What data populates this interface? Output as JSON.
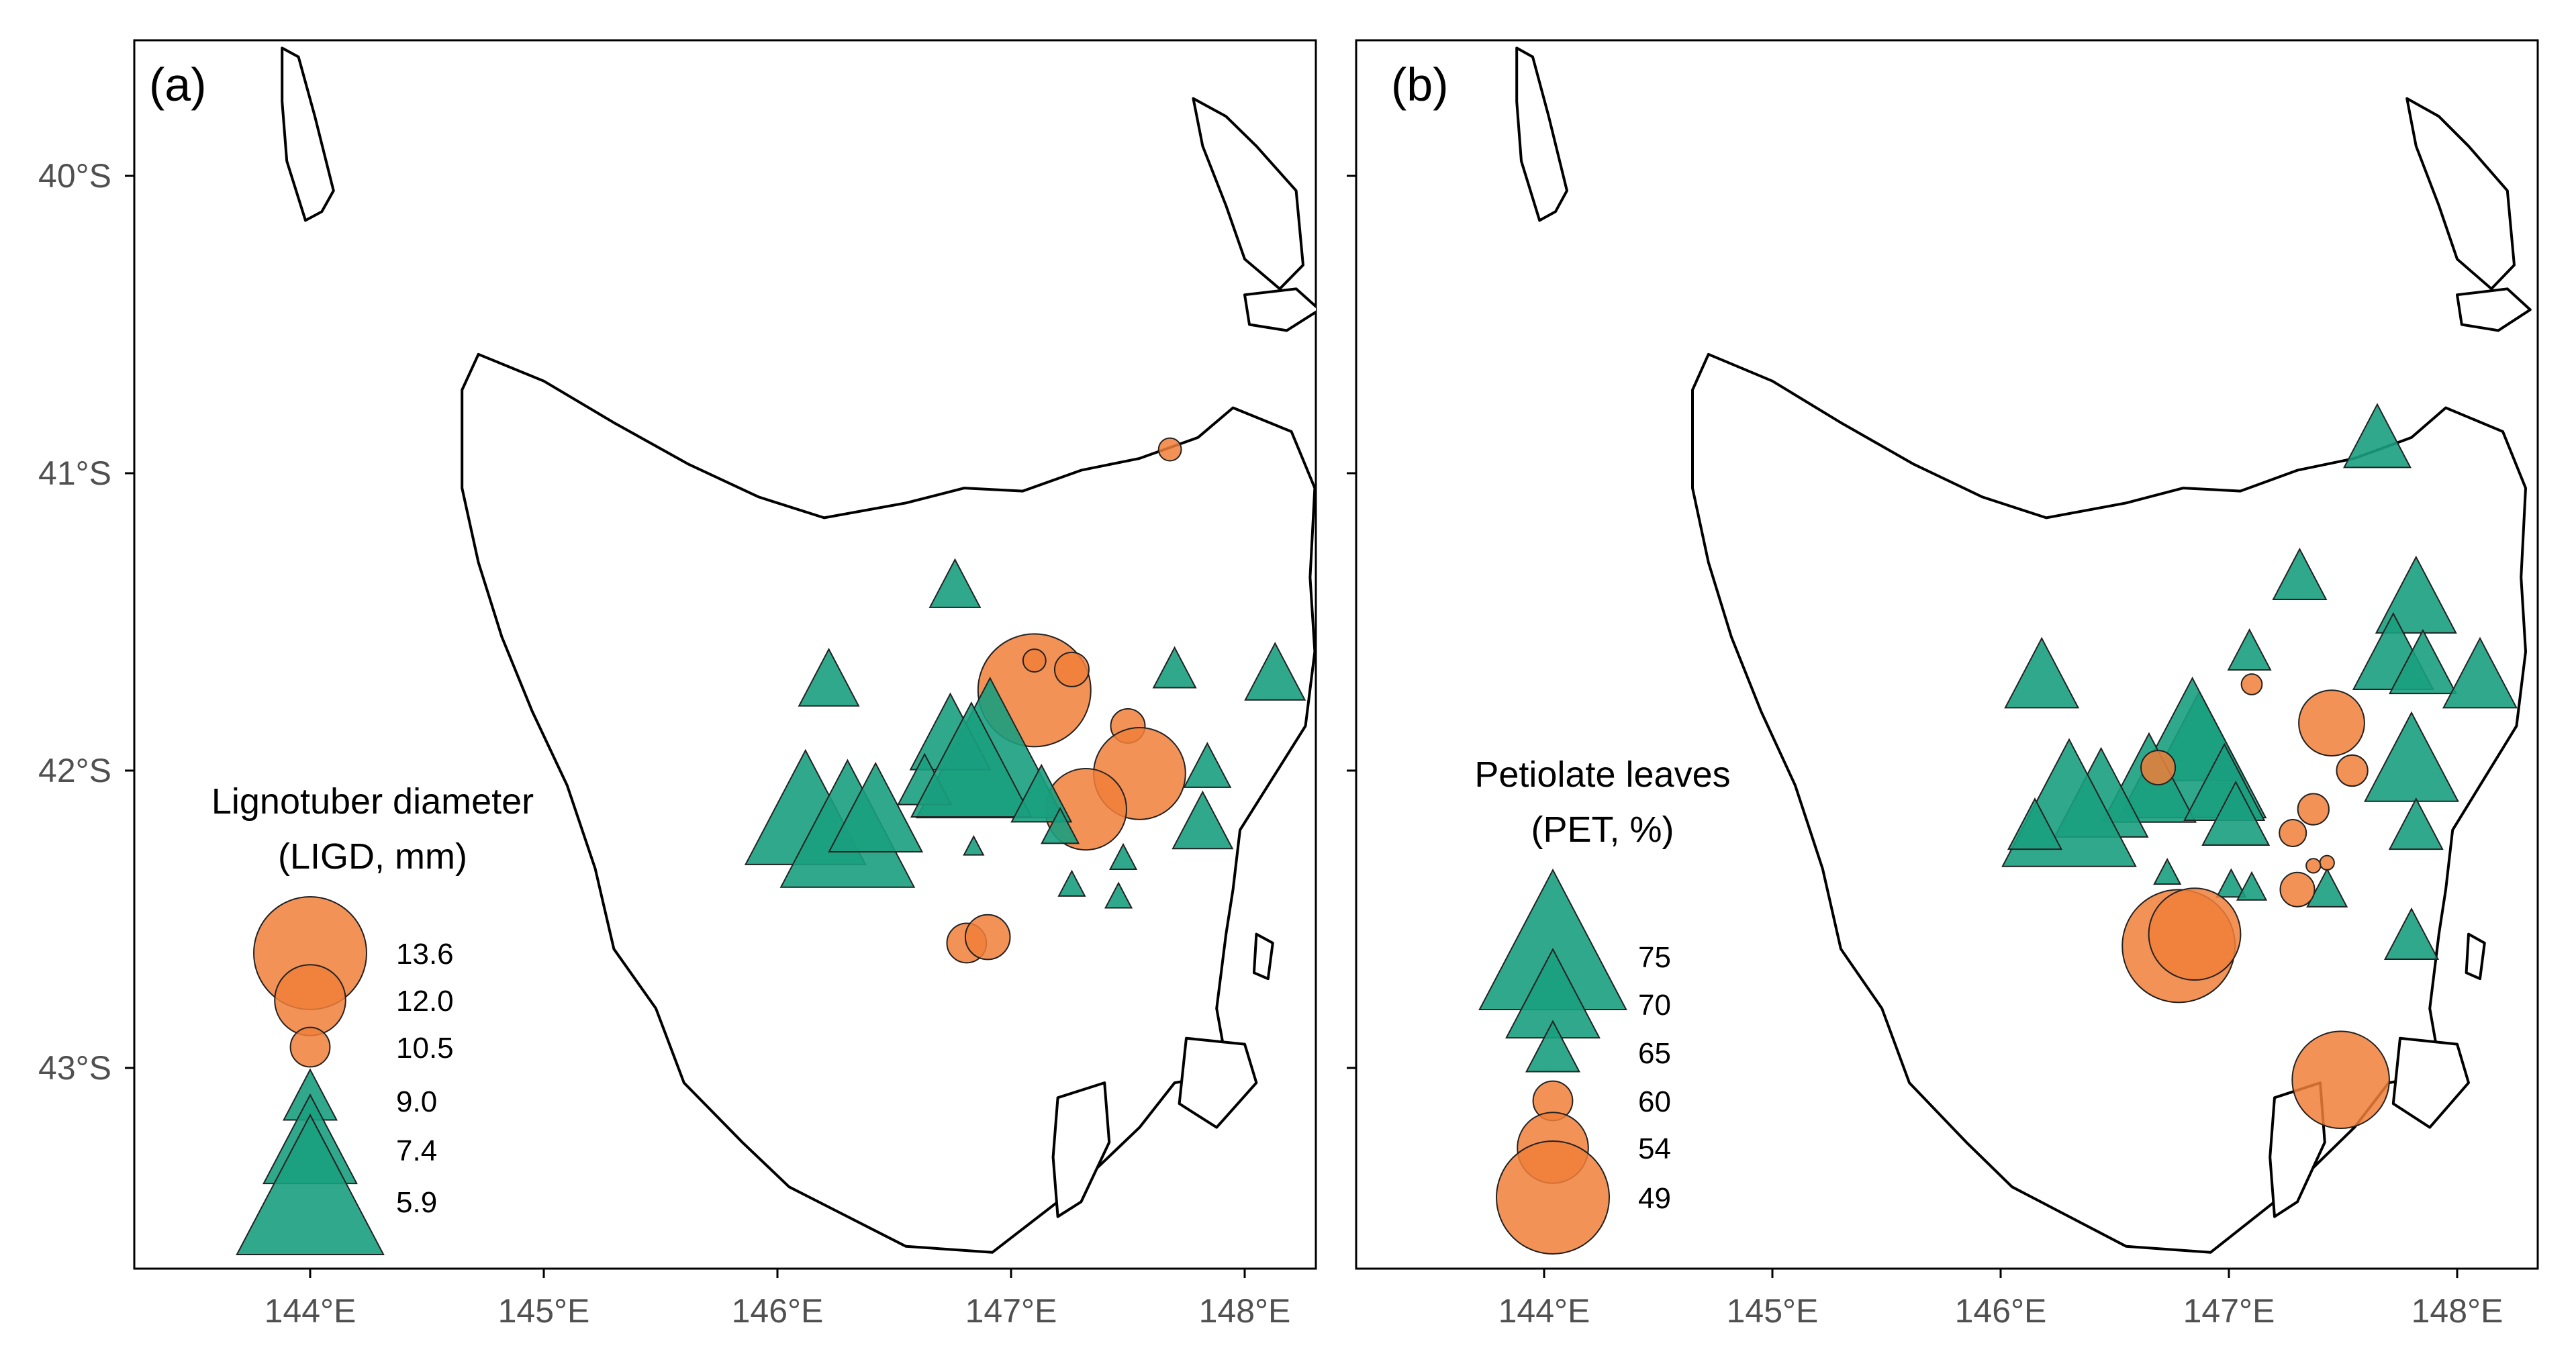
{
  "colors": {
    "triangle_fill": "#1a9e7e",
    "circle_fill": "#f07f3a",
    "coastline": "#000000",
    "tick_label": "#505050"
  },
  "axes": {
    "lon_ticks": [
      144,
      145,
      146,
      147,
      148
    ],
    "lat_ticks": [
      -40,
      -41,
      -42,
      -43
    ],
    "lon_labels": [
      "144°E",
      "145°E",
      "146°E",
      "147°E",
      "148°E"
    ],
    "lat_labels": [
      "40°S",
      "41°S",
      "42°S",
      "43°S"
    ]
  },
  "panels": [
    {
      "id": "a",
      "label": "(a)",
      "legend": {
        "title_line1": "Lignotuber diameter",
        "title_line2": "(LIGD, mm)",
        "entries": [
          {
            "value": 13.6,
            "label": "13.6",
            "shape": "circle",
            "size": 1.0
          },
          {
            "value": 12.0,
            "label": "12.0",
            "shape": "circle",
            "size": 0.6
          },
          {
            "value": 10.5,
            "label": "10.5",
            "shape": "circle",
            "size": 0.3
          },
          {
            "value": 9.0,
            "label": "9.0",
            "shape": "triangle",
            "size": 0.3
          },
          {
            "value": 7.4,
            "label": "7.4",
            "shape": "triangle",
            "size": 0.6
          },
          {
            "value": 5.9,
            "label": "5.9",
            "shape": "triangle",
            "size": 1.0
          }
        ]
      },
      "points": [
        {
          "lon": 147.68,
          "lat": -40.92,
          "shape": "circle",
          "size": 0.14
        },
        {
          "lon": 147.1,
          "lat": -41.73,
          "shape": "circle",
          "size": 1.0
        },
        {
          "lon": 147.1,
          "lat": -41.63,
          "shape": "circle",
          "size": 0.14
        },
        {
          "lon": 147.26,
          "lat": -41.66,
          "shape": "circle",
          "size": 0.25
        },
        {
          "lon": 147.5,
          "lat": -41.85,
          "shape": "circle",
          "size": 0.25
        },
        {
          "lon": 147.55,
          "lat": -42.01,
          "shape": "circle",
          "size": 0.8
        },
        {
          "lon": 147.32,
          "lat": -42.13,
          "shape": "circle",
          "size": 0.7
        },
        {
          "lon": 146.81,
          "lat": -42.58,
          "shape": "circle",
          "size": 0.3
        },
        {
          "lon": 146.9,
          "lat": -42.56,
          "shape": "circle",
          "size": 0.35
        },
        {
          "lon": 146.76,
          "lat": -41.39,
          "shape": "triangle",
          "size": 0.28
        },
        {
          "lon": 146.22,
          "lat": -41.71,
          "shape": "triangle",
          "size": 0.35
        },
        {
          "lon": 147.7,
          "lat": -41.67,
          "shape": "triangle",
          "size": 0.22
        },
        {
          "lon": 148.13,
          "lat": -41.69,
          "shape": "triangle",
          "size": 0.35
        },
        {
          "lon": 146.91,
          "lat": -41.98,
          "shape": "triangle",
          "size": 1.0
        },
        {
          "lon": 146.74,
          "lat": -41.9,
          "shape": "triangle",
          "size": 0.5
        },
        {
          "lon": 146.63,
          "lat": -42.05,
          "shape": "triangle",
          "size": 0.3
        },
        {
          "lon": 146.83,
          "lat": -42.01,
          "shape": "triangle",
          "size": 0.8
        },
        {
          "lon": 146.12,
          "lat": -42.17,
          "shape": "triangle",
          "size": 0.8
        },
        {
          "lon": 146.3,
          "lat": -42.23,
          "shape": "triangle",
          "size": 0.9
        },
        {
          "lon": 146.42,
          "lat": -42.16,
          "shape": "triangle",
          "size": 0.6
        },
        {
          "lon": 147.13,
          "lat": -42.1,
          "shape": "triangle",
          "size": 0.35
        },
        {
          "lon": 147.21,
          "lat": -42.2,
          "shape": "triangle",
          "size": 0.18
        },
        {
          "lon": 147.84,
          "lat": -42.0,
          "shape": "triangle",
          "size": 0.25
        },
        {
          "lon": 147.82,
          "lat": -42.19,
          "shape": "triangle",
          "size": 0.35
        },
        {
          "lon": 146.84,
          "lat": -42.26,
          "shape": "triangle",
          "size": 0.05
        },
        {
          "lon": 147.48,
          "lat": -42.3,
          "shape": "triangle",
          "size": 0.1
        },
        {
          "lon": 147.26,
          "lat": -42.39,
          "shape": "triangle",
          "size": 0.1
        },
        {
          "lon": 147.46,
          "lat": -42.43,
          "shape": "triangle",
          "size": 0.1
        }
      ]
    },
    {
      "id": "b",
      "label": "(b)",
      "legend": {
        "title_line1": "Petiolate leaves",
        "title_line2": "(PET, %)",
        "entries": [
          {
            "value": 75,
            "label": "75",
            "shape": "triangle",
            "size": 1.0
          },
          {
            "value": 70,
            "label": "70",
            "shape": "triangle",
            "size": 0.6
          },
          {
            "value": 65,
            "label": "65",
            "shape": "triangle",
            "size": 0.3
          },
          {
            "value": 60,
            "label": "60",
            "shape": "circle",
            "size": 0.3
          },
          {
            "value": 54,
            "label": "54",
            "shape": "circle",
            "size": 0.6
          },
          {
            "value": 49,
            "label": "49",
            "shape": "circle",
            "size": 1.0
          }
        ]
      },
      "points": [
        {
          "lon": 147.65,
          "lat": -40.9,
          "shape": "triangle",
          "size": 0.4
        },
        {
          "lon": 147.31,
          "lat": -41.36,
          "shape": "triangle",
          "size": 0.3
        },
        {
          "lon": 147.82,
          "lat": -41.44,
          "shape": "triangle",
          "size": 0.5
        },
        {
          "lon": 147.09,
          "lat": -41.61,
          "shape": "triangle",
          "size": 0.22
        },
        {
          "lon": 147.72,
          "lat": -41.63,
          "shape": "triangle",
          "size": 0.5
        },
        {
          "lon": 147.85,
          "lat": -41.66,
          "shape": "triangle",
          "size": 0.4
        },
        {
          "lon": 148.1,
          "lat": -41.7,
          "shape": "triangle",
          "size": 0.45
        },
        {
          "lon": 146.18,
          "lat": -41.7,
          "shape": "triangle",
          "size": 0.45
        },
        {
          "lon": 146.87,
          "lat": -41.92,
          "shape": "triangle",
          "size": 0.6
        },
        {
          "lon": 147.8,
          "lat": -41.99,
          "shape": "triangle",
          "size": 0.6
        },
        {
          "lon": 146.84,
          "lat": -41.98,
          "shape": "triangle",
          "size": 1.0
        },
        {
          "lon": 146.65,
          "lat": -42.06,
          "shape": "triangle",
          "size": 0.6
        },
        {
          "lon": 146.98,
          "lat": -42.07,
          "shape": "triangle",
          "size": 0.5
        },
        {
          "lon": 146.44,
          "lat": -42.11,
          "shape": "triangle",
          "size": 0.6
        },
        {
          "lon": 146.3,
          "lat": -42.16,
          "shape": "triangle",
          "size": 0.9
        },
        {
          "lon": 146.15,
          "lat": -42.2,
          "shape": "triangle",
          "size": 0.3
        },
        {
          "lon": 147.03,
          "lat": -42.17,
          "shape": "triangle",
          "size": 0.4
        },
        {
          "lon": 147.82,
          "lat": -42.2,
          "shape": "triangle",
          "size": 0.3
        },
        {
          "lon": 146.73,
          "lat": -42.35,
          "shape": "triangle",
          "size": 0.1
        },
        {
          "lon": 147.01,
          "lat": -42.39,
          "shape": "triangle",
          "size": 0.12
        },
        {
          "lon": 147.1,
          "lat": -42.4,
          "shape": "triangle",
          "size": 0.12
        },
        {
          "lon": 147.43,
          "lat": -42.41,
          "shape": "triangle",
          "size": 0.2
        },
        {
          "lon": 147.8,
          "lat": -42.57,
          "shape": "triangle",
          "size": 0.3
        },
        {
          "lon": 147.1,
          "lat": -41.71,
          "shape": "circle",
          "size": 0.12
        },
        {
          "lon": 147.45,
          "lat": -41.84,
          "shape": "circle",
          "size": 0.55
        },
        {
          "lon": 146.69,
          "lat": -41.99,
          "shape": "circle",
          "size": 0.25
        },
        {
          "lon": 147.54,
          "lat": -42.0,
          "shape": "circle",
          "size": 0.22
        },
        {
          "lon": 147.37,
          "lat": -42.13,
          "shape": "circle",
          "size": 0.22
        },
        {
          "lon": 147.28,
          "lat": -42.21,
          "shape": "circle",
          "size": 0.18
        },
        {
          "lon": 147.43,
          "lat": -42.31,
          "shape": "circle",
          "size": 0.06
        },
        {
          "lon": 147.37,
          "lat": -42.32,
          "shape": "circle",
          "size": 0.06
        },
        {
          "lon": 147.3,
          "lat": -42.4,
          "shape": "circle",
          "size": 0.25
        },
        {
          "lon": 146.78,
          "lat": -42.59,
          "shape": "circle",
          "size": 1.0
        },
        {
          "lon": 146.85,
          "lat": -42.55,
          "shape": "circle",
          "size": 0.8
        },
        {
          "lon": 147.49,
          "lat": -43.04,
          "shape": "circle",
          "size": 0.85
        }
      ]
    }
  ]
}
